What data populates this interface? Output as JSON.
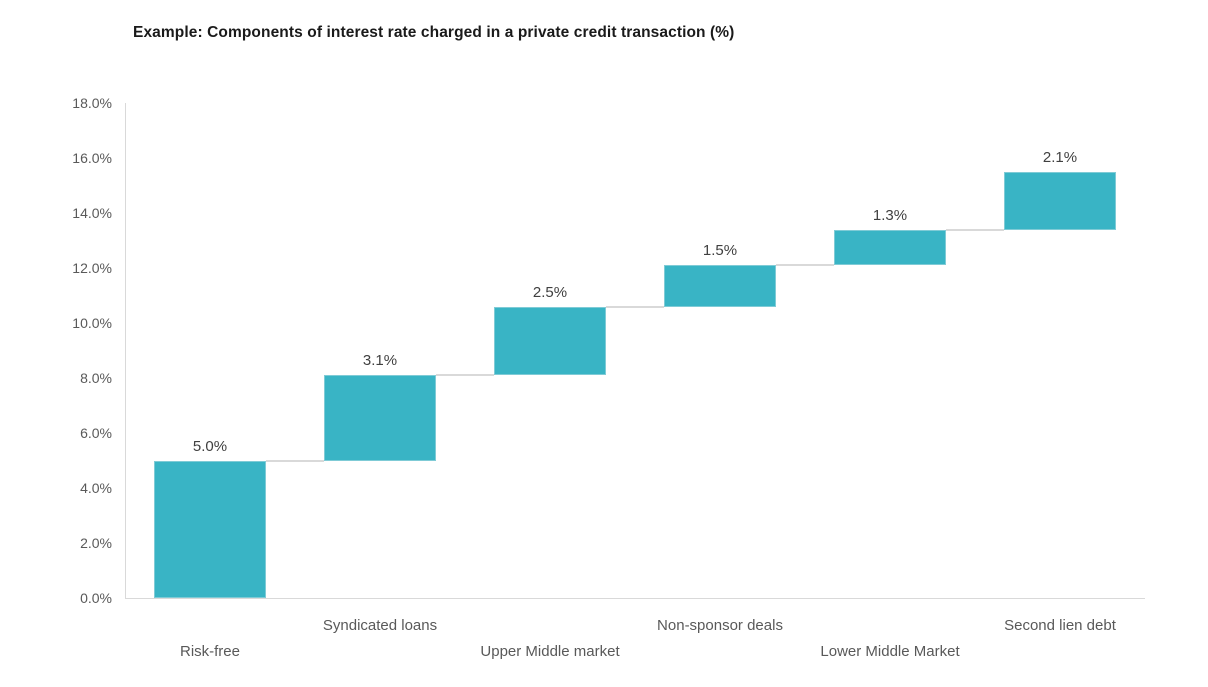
{
  "chart_data": {
    "type": "bar",
    "subtype": "waterfall",
    "title": "Example: Components of interest rate charged in a private credit transaction (%)",
    "categories": [
      "Risk-free",
      "Syndicated loans",
      "Upper Middle market",
      "Non-sponsor deals",
      "Lower Middle Market",
      "Second lien debt"
    ],
    "values": [
      5.0,
      3.1,
      2.5,
      1.5,
      1.3,
      2.1
    ],
    "cumulative_start": [
      0.0,
      5.0,
      8.1,
      10.6,
      12.1,
      13.4
    ],
    "cumulative_end": [
      5.0,
      8.1,
      10.6,
      12.1,
      13.4,
      15.5
    ],
    "bar_labels": [
      "5.0%",
      "3.1%",
      "2.5%",
      "1.5%",
      "1.3%",
      "2.1%"
    ],
    "xlabel": "",
    "ylabel": "",
    "ylim": [
      0,
      18
    ],
    "y_tick_step": 2,
    "y_tick_labels": [
      "0.0%",
      "2.0%",
      "4.0%",
      "6.0%",
      "8.0%",
      "10.0%",
      "12.0%",
      "14.0%",
      "16.0%",
      "18.0%"
    ],
    "grid": false,
    "legend": false,
    "colors": {
      "bar": "#39B4C5",
      "bar_border": "#7FCBD6",
      "connector": "#D9D9D9",
      "axis_line": "#D9D9D9",
      "tick_label": "#595959",
      "category_label": "#595959",
      "data_label": "#404040",
      "title": "#1A1A1A"
    }
  }
}
